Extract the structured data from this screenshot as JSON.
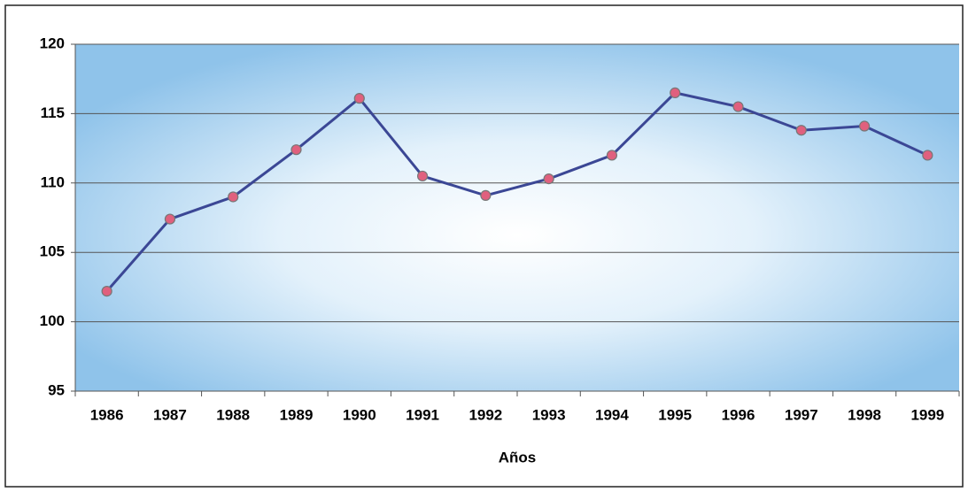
{
  "chart_data": {
    "type": "line",
    "x_label": "Años",
    "categories": [
      "1986",
      "1987",
      "1988",
      "1989",
      "1990",
      "1991",
      "1992",
      "1993",
      "1994",
      "1995",
      "1996",
      "1997",
      "1998",
      "1999"
    ],
    "values": [
      102.2,
      107.4,
      109.0,
      112.4,
      116.1,
      110.5,
      109.1,
      110.3,
      112.0,
      116.5,
      115.5,
      113.8,
      114.1,
      112.0
    ],
    "color": "#3b4795",
    "marker_color": "#e0607e",
    "ylim": [
      95,
      120
    ],
    "yticks": [
      95,
      100,
      105,
      110,
      115,
      120
    ],
    "grid": true
  }
}
